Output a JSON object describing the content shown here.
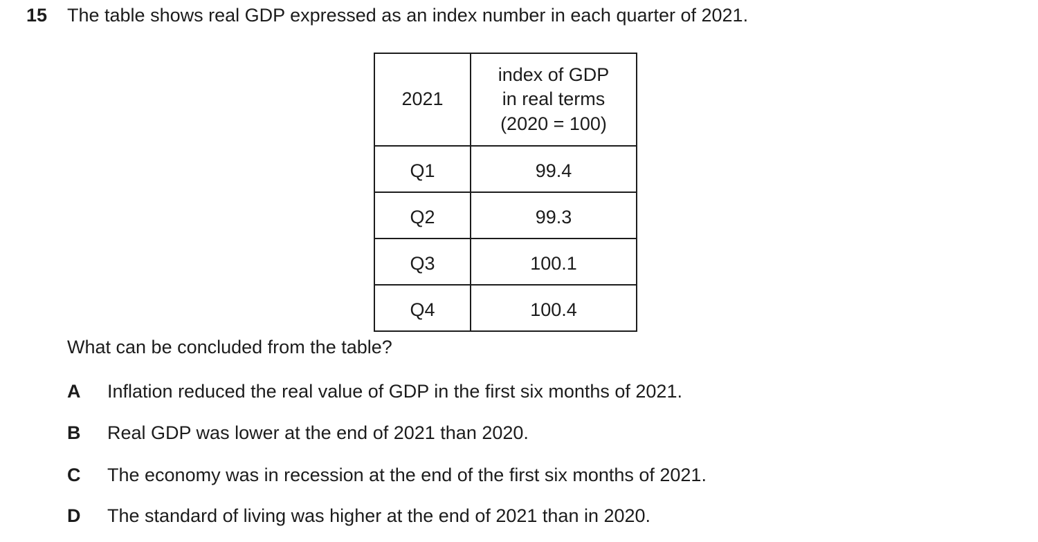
{
  "question": {
    "number": "15",
    "stem": "The table shows real GDP expressed as an index number in each quarter of 2021.",
    "prompt": "What can be concluded from the table?"
  },
  "table": {
    "year_header": "2021",
    "value_header_lines": [
      "index of GDP",
      "in real terms",
      "(2020 = 100)"
    ],
    "rows": [
      {
        "quarter": "Q1",
        "value": "99.4"
      },
      {
        "quarter": "Q2",
        "value": "99.3"
      },
      {
        "quarter": "Q3",
        "value": "100.1"
      },
      {
        "quarter": "Q4",
        "value": "100.4"
      }
    ]
  },
  "chart_data": {
    "type": "table",
    "columns": [
      "2021",
      "index of GDP in real terms (2020 = 100)"
    ],
    "categories": [
      "Q1",
      "Q2",
      "Q3",
      "Q4"
    ],
    "values": [
      99.4,
      99.3,
      100.1,
      100.4
    ]
  },
  "options": [
    {
      "letter": "A",
      "text": "Inflation reduced the real value of GDP in the first six months of 2021."
    },
    {
      "letter": "B",
      "text": "Real GDP was lower at the end of 2021 than 2020."
    },
    {
      "letter": "C",
      "text": "The economy was in recession at the end of the first six months of 2021."
    },
    {
      "letter": "D",
      "text": "The standard of living was higher at the end of 2021 than in 2020."
    }
  ],
  "colors": {
    "background": "#ffffff",
    "text": "#1c1c1c",
    "table_border": "#1c1c1c"
  }
}
